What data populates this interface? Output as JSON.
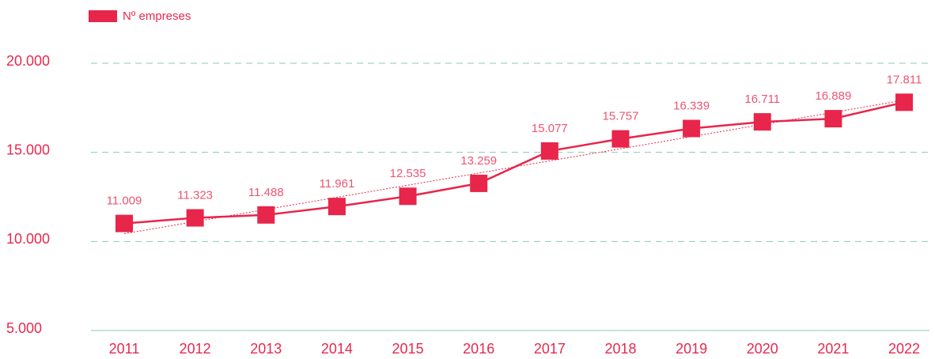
{
  "chart_data": {
    "type": "line",
    "categories": [
      "2011",
      "2012",
      "2013",
      "2014",
      "2015",
      "2016",
      "2017",
      "2018",
      "2019",
      "2020",
      "2021",
      "2022"
    ],
    "series": [
      {
        "name": "Nº empreses",
        "color": "#e8254a",
        "values": [
          11009,
          11323,
          11488,
          11961,
          12535,
          13259,
          15077,
          15757,
          16339,
          16711,
          16889,
          17811
        ],
        "value_labels": [
          "11.009",
          "11.323",
          "11.488",
          "11.961",
          "12.535",
          "13.259",
          "15.077",
          "15.757",
          "16.339",
          "16.711",
          "16.889",
          "17.811"
        ]
      }
    ],
    "ylim": [
      5000,
      20000
    ],
    "yticks": [
      {
        "value": 5000,
        "label": "5.000"
      },
      {
        "value": 10000,
        "label": "10.000"
      },
      {
        "value": 15000,
        "label": "15.000"
      },
      {
        "value": 20000,
        "label": "20.000"
      }
    ],
    "grid": true,
    "legend": "top-left",
    "trendline": true
  }
}
